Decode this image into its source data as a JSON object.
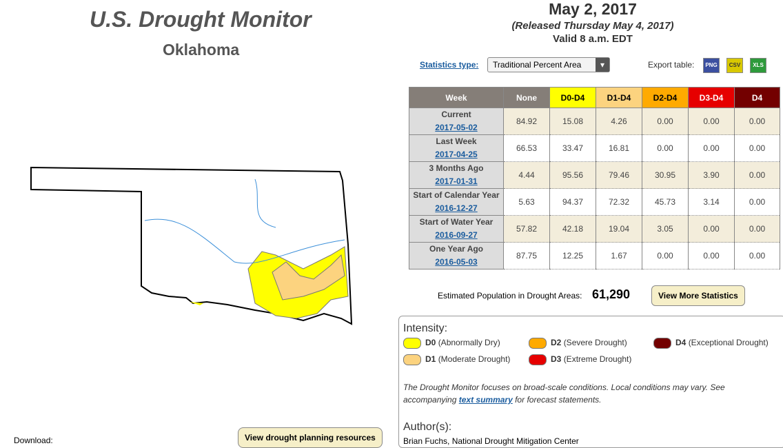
{
  "header": {
    "title": "U.S. Drought Monitor",
    "state": "Oklahoma",
    "date": "May 2, 2017",
    "released": "(Released Thursday May 4, 2017)",
    "valid": "Valid 8 a.m. EDT"
  },
  "controls": {
    "stats_label": "Statistics type:",
    "stats_value": "Traditional Percent Area",
    "export_label": "Export table:",
    "exports": [
      "PNG",
      "CSV",
      "XLS"
    ]
  },
  "table": {
    "headers": [
      "Week",
      "None",
      "D0-D4",
      "D1-D4",
      "D2-D4",
      "D3-D4",
      "D4"
    ],
    "header_colors": [
      "#857e78",
      "#857e78",
      "#ffff00",
      "#fcd37f",
      "#ffaa00",
      "#e60000",
      "#730000"
    ],
    "rows": [
      {
        "label": "Current",
        "date": "2017-05-02",
        "values": [
          "84.92",
          "15.08",
          "4.26",
          "0.00",
          "0.00",
          "0.00"
        ]
      },
      {
        "label": "Last Week",
        "date": "2017-04-25",
        "values": [
          "66.53",
          "33.47",
          "16.81",
          "0.00",
          "0.00",
          "0.00"
        ]
      },
      {
        "label": "3 Months Ago",
        "date": "2017-01-31",
        "values": [
          "4.44",
          "95.56",
          "79.46",
          "30.95",
          "3.90",
          "0.00"
        ]
      },
      {
        "label": "Start of Calendar Year",
        "date": "2016-12-27",
        "values": [
          "5.63",
          "94.37",
          "72.32",
          "45.73",
          "3.14",
          "0.00"
        ]
      },
      {
        "label": "Start of Water Year",
        "date": "2016-09-27",
        "values": [
          "57.82",
          "42.18",
          "19.04",
          "3.05",
          "0.00",
          "0.00"
        ]
      },
      {
        "label": "One Year Ago",
        "date": "2016-05-03",
        "values": [
          "87.75",
          "12.25",
          "1.67",
          "0.00",
          "0.00",
          "0.00"
        ]
      }
    ]
  },
  "population": {
    "label": "Estimated Population in Drought Areas:",
    "value": "61,290",
    "button": "View More Statistics"
  },
  "legend": {
    "title": "Intensity:",
    "items": [
      {
        "code": "D0",
        "desc": "(Abnormally Dry)",
        "color": "#ffff00"
      },
      {
        "code": "D2",
        "desc": "(Severe Drought)",
        "color": "#ffaa00"
      },
      {
        "code": "D4",
        "desc": "(Exceptional Drought)",
        "color": "#730000"
      },
      {
        "code": "D1",
        "desc": "(Moderate Drought)",
        "color": "#fcd37f"
      },
      {
        "code": "D3",
        "desc": "(Extreme Drought)",
        "color": "#e60000"
      }
    ],
    "note_before": "The Drought Monitor focuses on broad-scale conditions. Local conditions may vary. See accompanying ",
    "note_link": "text summary",
    "note_after": " for forecast statements.",
    "author_title": "Author(s):",
    "author": "Brian Fuchs, National Drought Mitigation Center"
  },
  "footer": {
    "download": "Download:",
    "planning": "View drought planning resources"
  }
}
